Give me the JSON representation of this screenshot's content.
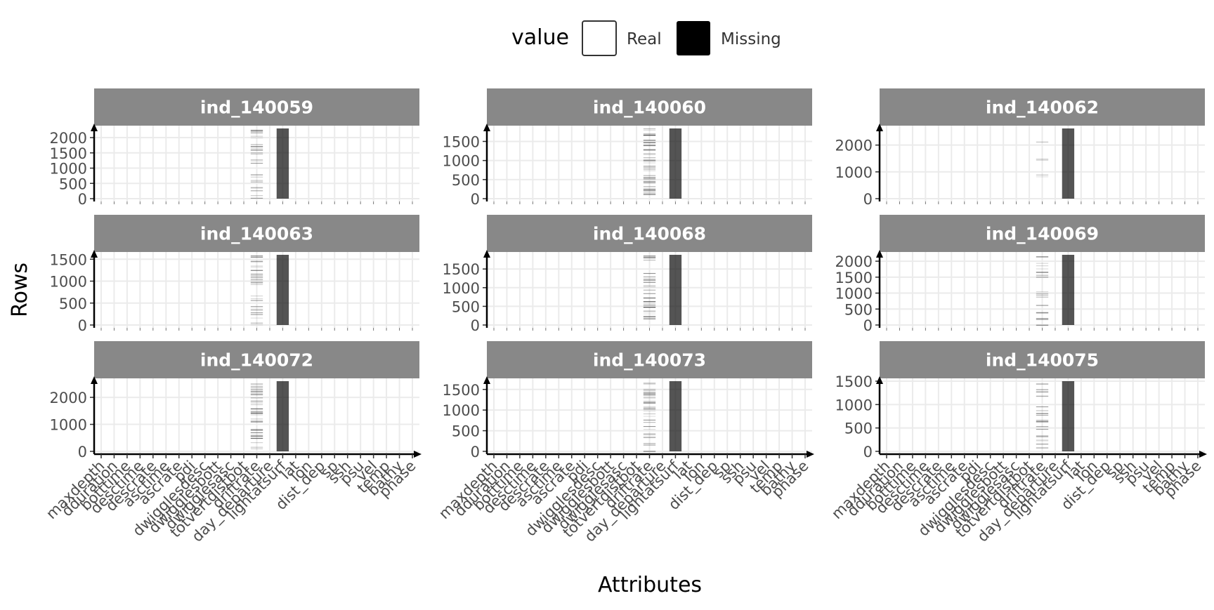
{
  "chart_data": {
    "type": "heatmap",
    "title": "",
    "xlabel": "Attributes",
    "ylabel": "Rows",
    "legend": {
      "title": "value",
      "placement": "top",
      "entries": [
        {
          "label": "Real",
          "color": "#ffffff"
        },
        {
          "label": "Missing",
          "color": "#000000"
        }
      ]
    },
    "attributes": [
      "maxdepth",
      "dduration",
      "botttime",
      "desctime",
      "descrate",
      "asctime",
      "ascrate",
      "pdi",
      "dwigglesdesc",
      "dwigglesbott",
      "dwigglesasc",
      "totvertdistbot",
      "driftrate",
      "day_departure",
      "lightatsurf",
      "lat",
      "lon",
      "dist_dep",
      "sp",
      "ssh",
      "psu",
      "vel",
      "temp",
      "bathy",
      "phase"
    ],
    "facets": [
      {
        "id": "ind_140059",
        "ymax": 2300,
        "ticks": [
          0,
          500,
          1000,
          1500,
          2000
        ],
        "full_missing": "lightatsurf",
        "sparse_missing": "driftrate",
        "sparse_density": 0.5
      },
      {
        "id": "ind_140060",
        "ymax": 1840,
        "ticks": [
          0,
          500,
          1000,
          1500
        ],
        "full_missing": "lightatsurf",
        "sparse_missing": "driftrate",
        "sparse_density": 0.8
      },
      {
        "id": "ind_140062",
        "ymax": 2620,
        "ticks": [
          0,
          1000,
          2000
        ],
        "full_missing": "lightatsurf",
        "sparse_missing": "driftrate",
        "sparse_density": 0.08
      },
      {
        "id": "ind_140063",
        "ymax": 1600,
        "ticks": [
          0,
          500,
          1000,
          1500
        ],
        "full_missing": "lightatsurf",
        "sparse_missing": "driftrate",
        "sparse_density": 0.5
      },
      {
        "id": "ind_140068",
        "ymax": 1880,
        "ticks": [
          0,
          500,
          1000,
          1500
        ],
        "full_missing": "lightatsurf",
        "sparse_missing": "driftrate",
        "sparse_density": 0.6
      },
      {
        "id": "ind_140069",
        "ymax": 2200,
        "ticks": [
          0,
          500,
          1000,
          1500,
          2000
        ],
        "full_missing": "lightatsurf",
        "sparse_missing": "driftrate",
        "sparse_density": 0.35
      },
      {
        "id": "ind_140072",
        "ymax": 2600,
        "ticks": [
          0,
          1000,
          2000
        ],
        "full_missing": "lightatsurf",
        "sparse_missing": "driftrate",
        "sparse_density": 0.7
      },
      {
        "id": "ind_140073",
        "ymax": 1700,
        "ticks": [
          0,
          500,
          1000,
          1500
        ],
        "full_missing": "lightatsurf",
        "sparse_missing": "driftrate",
        "sparse_density": 0.55
      },
      {
        "id": "ind_140075",
        "ymax": 1500,
        "ticks": [
          0,
          500,
          1000,
          1500
        ],
        "full_missing": "lightatsurf",
        "sparse_missing": "driftrate",
        "sparse_density": 0.4
      }
    ]
  }
}
